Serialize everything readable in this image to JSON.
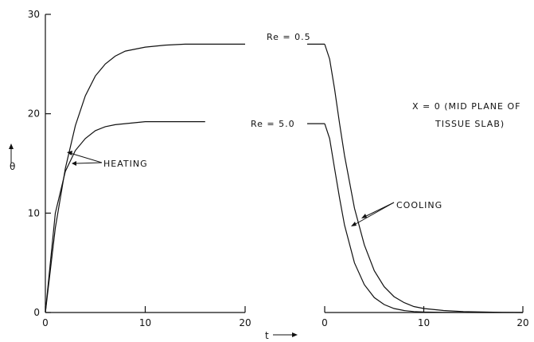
{
  "chart_data": {
    "type": "line",
    "ylabel": "θ",
    "xlabel": "t",
    "ylim": [
      0,
      30
    ],
    "yticks": [
      "0",
      "10",
      "20",
      "30"
    ],
    "panels": [
      {
        "phase": "heating",
        "xlim": [
          0,
          20
        ],
        "xticks": [
          "0",
          "10",
          "20"
        ],
        "series": [
          {
            "name": "Re = 0.5",
            "x": [
              0,
              1,
              2,
              3,
              4,
              5,
              6,
              7,
              8,
              9,
              10,
              12,
              14,
              16,
              18,
              20
            ],
            "y": [
              0,
              8.5,
              14.5,
              18.8,
              21.8,
              23.8,
              25.0,
              25.8,
              26.3,
              26.5,
              26.7,
              26.9,
              27.0,
              27.0,
              27.0,
              27.0
            ]
          },
          {
            "name": "Re = 5.0",
            "x": [
              0,
              1,
              2,
              3,
              4,
              5,
              6,
              7,
              8,
              9,
              10,
              12,
              14,
              16
            ],
            "y": [
              0,
              10.0,
              14.2,
              16.3,
              17.5,
              18.3,
              18.7,
              18.9,
              19.0,
              19.1,
              19.2,
              19.2,
              19.2,
              19.2
            ]
          }
        ]
      },
      {
        "phase": "cooling",
        "xlim": [
          0,
          20
        ],
        "xticks": [
          "0",
          "10",
          "20"
        ],
        "series": [
          {
            "name": "Re = 0.5",
            "x": [
              0,
              0.5,
              1,
              1.5,
              2,
              3,
              4,
              5,
              6,
              7,
              8,
              9,
              10,
              12,
              14,
              16,
              18,
              20
            ],
            "y": [
              27.0,
              25.5,
              22.5,
              19.0,
              15.8,
              10.5,
              6.8,
              4.2,
              2.6,
              1.6,
              1.0,
              0.6,
              0.4,
              0.2,
              0.1,
              0.05,
              0.02,
              0
            ]
          },
          {
            "name": "Re = 5.0",
            "x": [
              0,
              0.5,
              1,
              1.5,
              2,
              3,
              4,
              5,
              6,
              7,
              8,
              9,
              10,
              12,
              14,
              16,
              18,
              20
            ],
            "y": [
              19.0,
              17.5,
              14.5,
              11.5,
              8.8,
              5.0,
              2.8,
              1.5,
              0.8,
              0.4,
              0.2,
              0.1,
              0.05,
              0.02,
              0.01,
              0,
              0,
              0
            ]
          }
        ]
      }
    ],
    "annotations": {
      "re_high": "Re = 0.5",
      "re_low": "Re = 5.0",
      "heating": "HEATING",
      "cooling": "COOLING",
      "position_line1": "X = 0 (MID PLANE OF",
      "position_line2": "TISSUE SLAB)"
    }
  }
}
